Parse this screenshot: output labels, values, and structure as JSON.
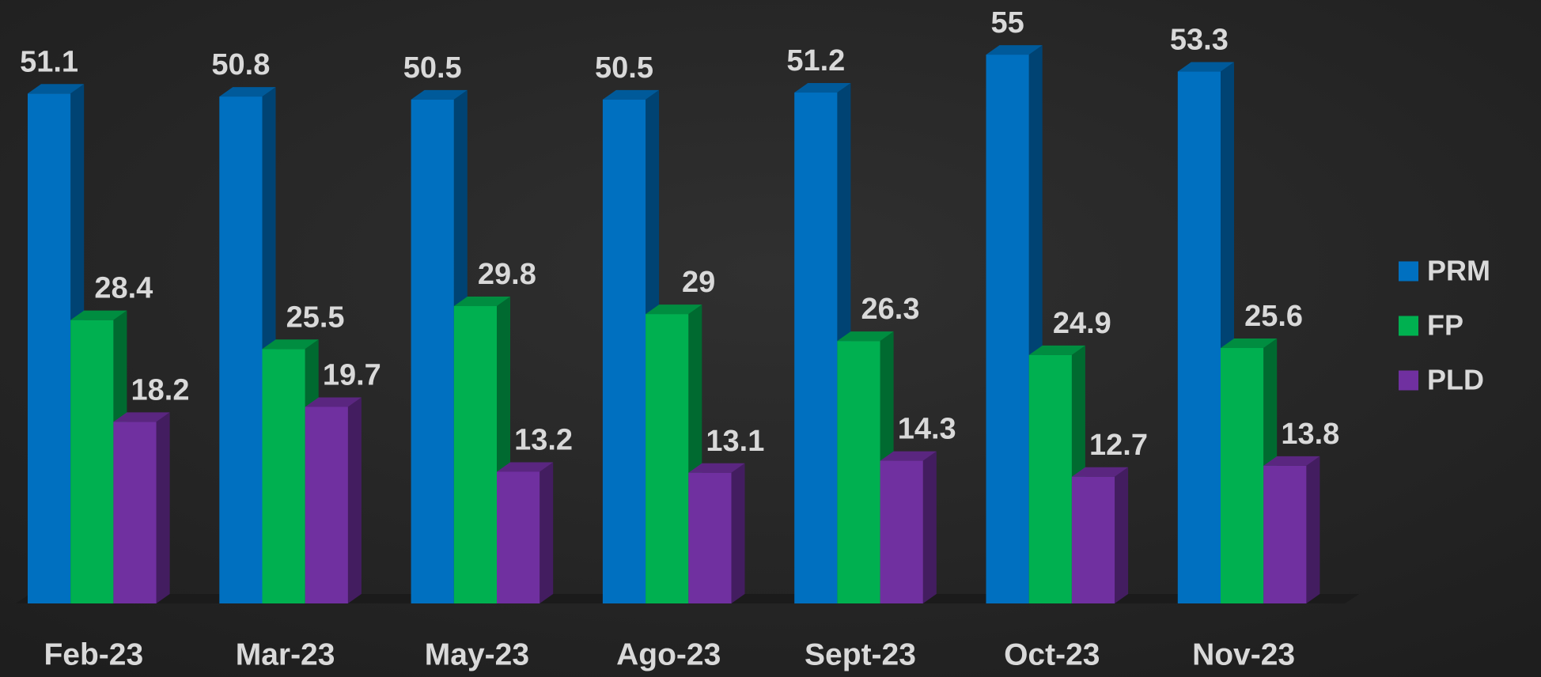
{
  "chart_data": {
    "type": "bar3d",
    "categories": [
      "Feb-23",
      "Mar-23",
      "May-23",
      "Ago-23",
      "Sept-23",
      "Oct-23",
      "Nov-23"
    ],
    "series": [
      {
        "name": "PRM",
        "color": "#0070c0",
        "values": [
          51.1,
          50.8,
          50.5,
          50.5,
          51.2,
          55,
          53.3
        ]
      },
      {
        "name": "FP",
        "color": "#00b050",
        "values": [
          28.4,
          25.5,
          29.8,
          29,
          26.3,
          24.9,
          25.6
        ]
      },
      {
        "name": "PLD",
        "color": "#7030a0",
        "values": [
          18.2,
          19.7,
          13.2,
          13.1,
          14.3,
          12.7,
          13.8
        ]
      }
    ],
    "ylim": [
      0,
      60
    ],
    "legend": "right"
  }
}
